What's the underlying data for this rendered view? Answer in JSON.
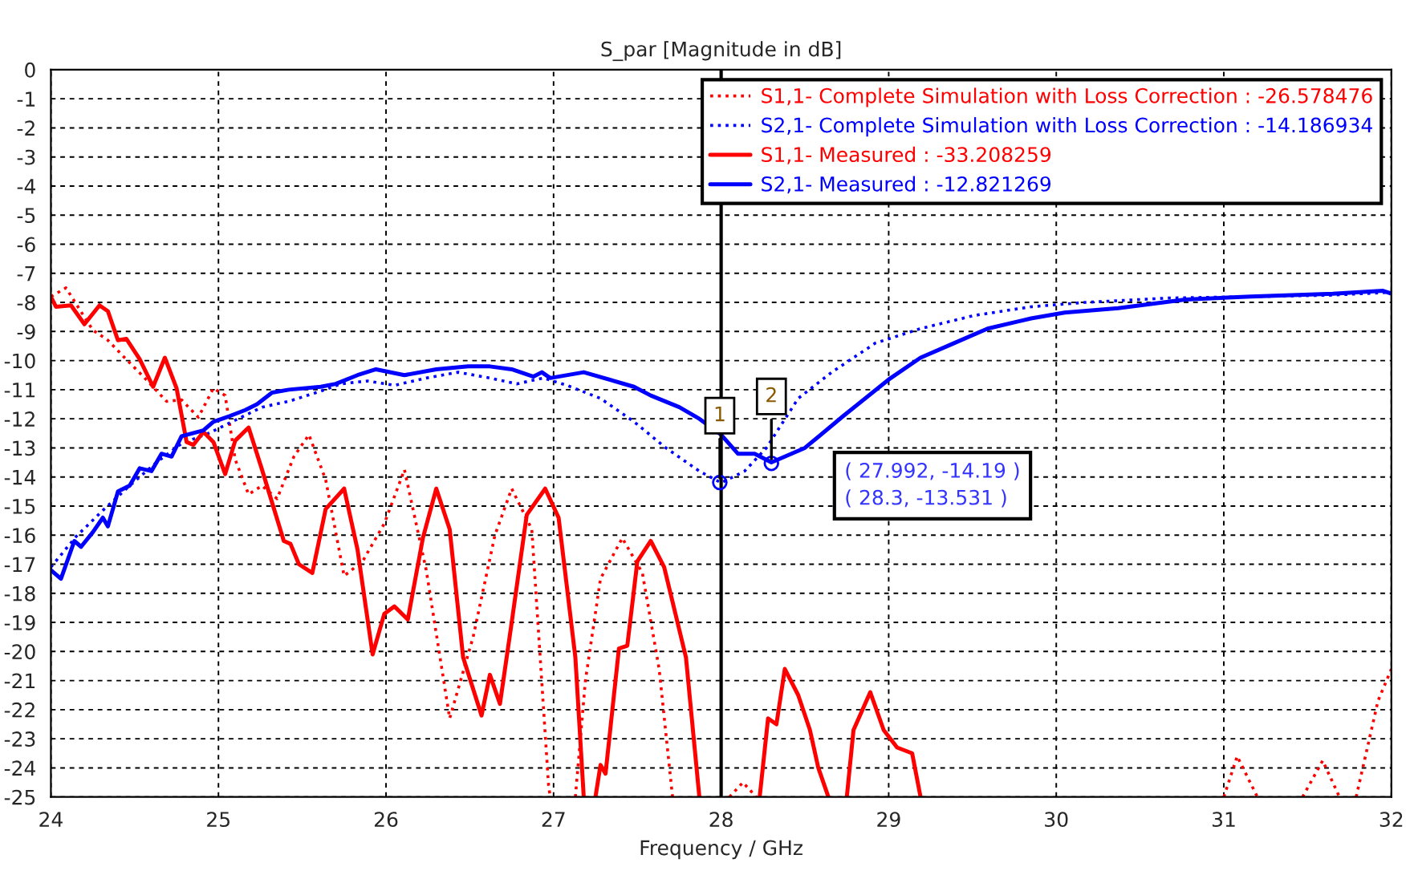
{
  "chart_data": {
    "type": "line",
    "title": "S_par [Magnitude in dB]",
    "xlabel": "Frequency / GHz",
    "xlim": [
      24,
      32
    ],
    "xticks": [
      24,
      25,
      26,
      27,
      28,
      29,
      30,
      31,
      32
    ],
    "ylim": [
      -25,
      0
    ],
    "yticks": [
      0,
      -1,
      -2,
      -3,
      -4,
      -5,
      -6,
      -7,
      -8,
      -9,
      -10,
      -11,
      -12,
      -13,
      -14,
      -15,
      -16,
      -17,
      -18,
      -19,
      -20,
      -21,
      -22,
      -23,
      -24,
      -25
    ],
    "grid": true,
    "legend": "top right",
    "ref_lines": [
      {
        "axis": "x",
        "value": 28,
        "color": "#000000",
        "line_style": "solid"
      }
    ],
    "annotations": [
      {
        "text": "1",
        "x": 27.992,
        "y": -14.19
      },
      {
        "text": "2",
        "x": 28.3,
        "y": -13.531
      },
      "( 27.992, -14.19 )",
      "( 28.3, -13.531 )"
    ],
    "series": [
      {
        "name": "S1,1- Complete Simulation with Loss Correction : -26.578476",
        "color": "#ff0000",
        "line_style": "dotted",
        "x": [
          24.0,
          24.09,
          24.15,
          24.25,
          24.34,
          24.44,
          24.56,
          24.69,
          24.78,
          24.88,
          24.97,
          25.04,
          25.1,
          25.18,
          25.26,
          25.35,
          25.45,
          25.54,
          25.64,
          25.75,
          25.86,
          25.99,
          26.11,
          26.24,
          26.38,
          26.52,
          26.65,
          26.75,
          26.87,
          26.97,
          26.98,
          27.05,
          27.13,
          27.19,
          27.28,
          27.41,
          27.53,
          27.63,
          27.71,
          27.9,
          28.05,
          28.13,
          28.21,
          28.6,
          31.0,
          31.08,
          31.2,
          31.3,
          31.47,
          31.59,
          31.69,
          31.74,
          31.79,
          31.92,
          32.0
        ],
        "values": [
          -7.8,
          -7.5,
          -8.05,
          -8.95,
          -9.3,
          -9.9,
          -10.6,
          -11.4,
          -11.35,
          -11.95,
          -10.95,
          -11.2,
          -13.4,
          -14.6,
          -14.3,
          -14.75,
          -13.3,
          -12.55,
          -14.1,
          -17.4,
          -16.9,
          -15.6,
          -13.75,
          -17.2,
          -22.3,
          -19.5,
          -16.0,
          -14.4,
          -15.8,
          -24.6,
          -25,
          null,
          -25,
          -21.0,
          -17.5,
          -16.1,
          -17.3,
          -20.6,
          -25,
          null,
          -25,
          -24.5,
          -25,
          null,
          -25,
          -23.6,
          -25,
          null,
          -25,
          -23.75,
          -25,
          null,
          -25,
          -21.7,
          -20.6
        ]
      },
      {
        "name": "S2,1- Complete Simulation with Loss Correction : -14.186934",
        "color": "#0000ff",
        "line_style": "dotted",
        "x": [
          24.0,
          24.15,
          24.31,
          24.47,
          24.63,
          24.78,
          24.94,
          25.1,
          25.26,
          25.42,
          25.61,
          25.73,
          25.89,
          26.05,
          26.24,
          26.43,
          26.62,
          26.78,
          26.94,
          27.08,
          27.28,
          27.48,
          27.67,
          27.87,
          28.0,
          28.14,
          28.27,
          28.46,
          28.66,
          28.92,
          29.19,
          29.51,
          29.85,
          30.17,
          30.67,
          31.16,
          31.65,
          32.0
        ],
        "values": [
          -17.1,
          -16.05,
          -15.15,
          -14.3,
          -13.5,
          -12.85,
          -12.5,
          -12.05,
          -11.6,
          -11.4,
          -11.05,
          -10.8,
          -10.7,
          -10.85,
          -10.6,
          -10.4,
          -10.6,
          -10.8,
          -10.6,
          -10.85,
          -11.3,
          -12.1,
          -13.0,
          -13.8,
          -14.2,
          -13.8,
          -13.0,
          -11.3,
          -10.4,
          -9.4,
          -8.9,
          -8.45,
          -8.15,
          -8.0,
          -7.85,
          -7.8,
          -7.75,
          -7.65
        ]
      },
      {
        "name": "S1,1- Measured : -33.208259",
        "color": "#ff0000",
        "line_style": "solid",
        "x": [
          24.0,
          24.03,
          24.12,
          24.2,
          24.29,
          24.34,
          24.4,
          24.45,
          24.53,
          24.61,
          24.68,
          24.75,
          24.81,
          24.85,
          24.91,
          24.97,
          25.04,
          25.1,
          25.18,
          25.26,
          25.39,
          25.43,
          25.48,
          25.56,
          25.64,
          25.75,
          25.83,
          25.92,
          25.99,
          26.05,
          26.13,
          26.22,
          26.3,
          26.38,
          26.46,
          26.57,
          26.62,
          26.68,
          26.75,
          26.84,
          26.95,
          27.03,
          27.13,
          27.18,
          27.21,
          27.25,
          27.28,
          27.31,
          27.39,
          27.44,
          27.5,
          27.58,
          27.66,
          27.79,
          27.87,
          28.0,
          28.23,
          28.28,
          28.33,
          28.38,
          28.46,
          28.53,
          28.58,
          28.64,
          28.7,
          28.75,
          28.79,
          28.89,
          28.97,
          29.05,
          29.14,
          29.19
        ],
        "values": [
          -7.8,
          -8.15,
          -8.1,
          -8.75,
          -8.1,
          -8.3,
          -9.3,
          -9.25,
          -9.95,
          -10.9,
          -9.9,
          -10.95,
          -12.8,
          -12.9,
          -12.45,
          -12.8,
          -13.9,
          -12.75,
          -12.3,
          -13.75,
          -16.2,
          -16.3,
          -17.0,
          -17.3,
          -15.1,
          -14.4,
          -16.5,
          -20.1,
          -18.7,
          -18.45,
          -18.9,
          -16.1,
          -14.4,
          -15.8,
          -20.2,
          -22.2,
          -20.8,
          -21.8,
          -19.0,
          -15.3,
          -14.4,
          -15.4,
          -20.2,
          -25,
          null,
          -25,
          -23.9,
          -24.2,
          -19.9,
          -19.8,
          -16.9,
          -16.2,
          -17.1,
          -20.2,
          -25,
          null,
          -25,
          -22.3,
          -22.5,
          -20.6,
          -21.5,
          -22.7,
          -24.0,
          -25,
          null,
          -25,
          -22.7,
          -21.4,
          -22.7,
          -23.3,
          -23.5,
          -25
        ]
      },
      {
        "name": "S2,1- Measured : -12.821269",
        "color": "#0000ff",
        "line_style": "solid",
        "x": [
          24.0,
          24.06,
          24.14,
          24.18,
          24.25,
          24.31,
          24.34,
          24.4,
          24.47,
          24.53,
          24.6,
          24.66,
          24.72,
          24.78,
          24.91,
          24.97,
          25.07,
          25.16,
          25.23,
          25.32,
          25.42,
          25.61,
          25.7,
          25.83,
          25.94,
          26.11,
          26.3,
          26.49,
          26.62,
          26.75,
          26.88,
          26.93,
          26.98,
          27.18,
          27.48,
          27.58,
          27.75,
          27.87,
          28.0,
          28.1,
          28.2,
          28.3,
          28.5,
          28.73,
          29.0,
          29.19,
          29.39,
          29.59,
          29.85,
          30.05,
          30.37,
          30.77,
          31.16,
          31.65,
          31.95,
          32.0
        ],
        "values": [
          -17.2,
          -17.5,
          -16.2,
          -16.4,
          -15.9,
          -15.4,
          -15.7,
          -14.5,
          -14.3,
          -13.7,
          -13.8,
          -13.2,
          -13.3,
          -12.6,
          -12.4,
          -12.1,
          -11.9,
          -11.7,
          -11.5,
          -11.1,
          -11.0,
          -10.9,
          -10.8,
          -10.5,
          -10.3,
          -10.5,
          -10.3,
          -10.2,
          -10.2,
          -10.3,
          -10.55,
          -10.4,
          -10.6,
          -10.4,
          -10.9,
          -11.2,
          -11.6,
          -12.0,
          -12.55,
          -13.2,
          -13.2,
          -13.5,
          -13.0,
          -11.9,
          -10.65,
          -9.9,
          -9.4,
          -8.9,
          -8.55,
          -8.35,
          -8.2,
          -7.9,
          -7.8,
          -7.7,
          -7.6,
          -7.7
        ]
      }
    ]
  }
}
